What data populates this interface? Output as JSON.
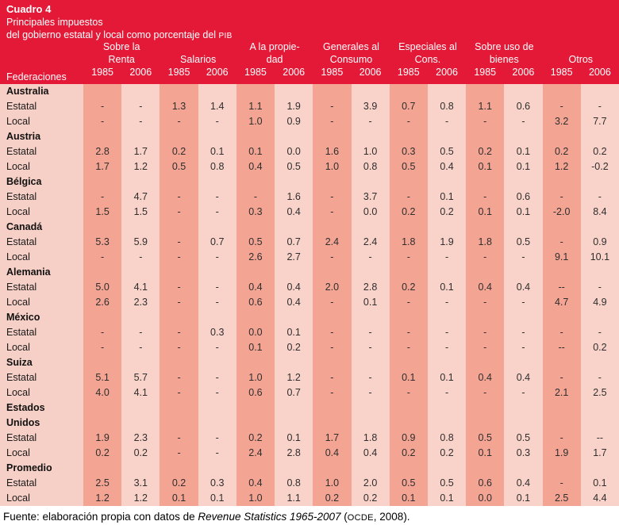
{
  "colors": {
    "header-red": "#E31937",
    "stripe-dark": "#F3A493",
    "stripe-light": "#F9D3C9",
    "label-col": "#F6CFC6",
    "ink": "#2E2E2E"
  },
  "header": {
    "title": "Cuadro 4",
    "subtitle_line1": "Principales impuestos",
    "subtitle_line2": "del gobierno estatal y local como porcentaje del ",
    "subtitle_line2_smallcaps": "PIB",
    "row_header_label": "Federaciones",
    "col_groups": [
      {
        "line1": "Sobre la",
        "line2": "Renta"
      },
      {
        "line1": "",
        "line2": "Salarios"
      },
      {
        "line1": "A la propie-",
        "line2": "dad"
      },
      {
        "line1": "Generales al",
        "line2": "Consumo"
      },
      {
        "line1": "Especiales al",
        "line2": "Cons."
      },
      {
        "line1": "Sobre uso de",
        "line2": "bienes"
      },
      {
        "line1": "",
        "line2": "Otros"
      }
    ],
    "years": [
      "1985",
      "2006"
    ]
  },
  "sections": [
    {
      "country_lines": [
        "Australia"
      ],
      "rows": [
        {
          "label": "Estatal",
          "values": [
            "-",
            "-",
            "1.3",
            "1.4",
            "1.1",
            "1.9",
            "-",
            "3.9",
            "0.7",
            "0.8",
            "1.1",
            "0.6",
            "-",
            "-"
          ]
        },
        {
          "label": "Local",
          "values": [
            "-",
            "-",
            "-",
            "-",
            "1.0",
            "0.9",
            "-",
            "-",
            "-",
            "-",
            "-",
            "-",
            "3.2",
            "7.7"
          ]
        }
      ]
    },
    {
      "country_lines": [
        "Austria"
      ],
      "rows": [
        {
          "label": "Estatal",
          "values": [
            "2.8",
            "1.7",
            "0.2",
            "0.1",
            "0.1",
            "0.0",
            "1.6",
            "1.0",
            "0.3",
            "0.5",
            "0.2",
            "0.1",
            "0.2",
            "0.2"
          ]
        },
        {
          "label": "Local",
          "values": [
            "1.7",
            "1.2",
            "0.5",
            "0.8",
            "0.4",
            "0.5",
            "1.0",
            "0.8",
            "0.5",
            "0.4",
            "0.1",
            "0.1",
            "1.2",
            "-0.2"
          ]
        }
      ]
    },
    {
      "country_lines": [
        "Bélgica"
      ],
      "rows": [
        {
          "label": "Estatal",
          "values": [
            "-",
            "4.7",
            "-",
            "-",
            "-",
            "1.6",
            "-",
            "3.7",
            "-",
            "0.1",
            "-",
            "0.6",
            "-",
            "-"
          ]
        },
        {
          "label": "Local",
          "values": [
            "1.5",
            "1.5",
            "-",
            "-",
            "0.3",
            "0.4",
            "-",
            "0.0",
            "0.2",
            "0.2",
            "0.1",
            "0.1",
            "-2.0",
            "8.4"
          ]
        }
      ]
    },
    {
      "country_lines": [
        "Canadá"
      ],
      "rows": [
        {
          "label": "Estatal",
          "values": [
            "5.3",
            "5.9",
            "-",
            "0.7",
            "0.5",
            "0.7",
            "2.4",
            "2.4",
            "1.8",
            "1.9",
            "1.8",
            "0.5",
            "-",
            "0.9"
          ]
        },
        {
          "label": "Local",
          "values": [
            "-",
            "-",
            "-",
            "-",
            "2.6",
            "2.7",
            "-",
            "-",
            "-",
            "-",
            "-",
            "-",
            "9.1",
            "10.1"
          ]
        }
      ]
    },
    {
      "country_lines": [
        "Alemania"
      ],
      "rows": [
        {
          "label": "Estatal",
          "values": [
            "5.0",
            "4.1",
            "-",
            "-",
            "0.4",
            "0.4",
            "2.0",
            "2.8",
            "0.2",
            "0.1",
            "0.4",
            "0.4",
            "--",
            "-"
          ]
        },
        {
          "label": "Local",
          "values": [
            "2.6",
            "2.3",
            "-",
            "-",
            "0.6",
            "0.4",
            "-",
            "0.1",
            "-",
            "-",
            "-",
            "-",
            "4.7",
            "4.9"
          ]
        }
      ]
    },
    {
      "country_lines": [
        "México"
      ],
      "rows": [
        {
          "label": "Estatal",
          "values": [
            "-",
            "-",
            "-",
            "0.3",
            "0.0",
            "0.1",
            "-",
            "-",
            "-",
            "-",
            "-",
            "-",
            "-",
            "-"
          ]
        },
        {
          "label": "Local",
          "values": [
            "-",
            "-",
            "-",
            "-",
            "0.1",
            "0.2",
            "-",
            "-",
            "-",
            "-",
            "-",
            "-",
            "--",
            "0.2"
          ]
        }
      ]
    },
    {
      "country_lines": [
        "Suiza"
      ],
      "rows": [
        {
          "label": "Estatal",
          "values": [
            "5.1",
            "5.7",
            "-",
            "-",
            "1.0",
            "1.2",
            "-",
            "-",
            "0.1",
            "0.1",
            "0.4",
            "0.4",
            "-",
            "-"
          ]
        },
        {
          "label": "Local",
          "values": [
            "4.0",
            "4.1",
            "-",
            "-",
            "0.6",
            "0.7",
            "-",
            "-",
            "-",
            "-",
            "-",
            "-",
            "2.1",
            "2.5"
          ]
        }
      ]
    },
    {
      "country_lines": [
        "Estados",
        "Unidos"
      ],
      "rows": [
        {
          "label": "Estatal",
          "values": [
            "1.9",
            "2.3",
            "-",
            "-",
            "0.2",
            "0.1",
            "1.7",
            "1.8",
            "0.9",
            "0.8",
            "0.5",
            "0.5",
            "-",
            "--"
          ]
        },
        {
          "label": "Local",
          "values": [
            "0.2",
            "0.2",
            "-",
            "-",
            "2.4",
            "2.8",
            "0.4",
            "0.4",
            "0.2",
            "0.2",
            "0.1",
            "0.3",
            "1.9",
            "1.7"
          ]
        }
      ]
    },
    {
      "country_lines": [
        "Promedio"
      ],
      "rows": [
        {
          "label": "Estatal",
          "values": [
            "2.5",
            "3.1",
            "0.2",
            "0.3",
            "0.4",
            "0.8",
            "1.0",
            "2.0",
            "0.5",
            "0.5",
            "0.6",
            "0.4",
            "-",
            "0.1"
          ]
        },
        {
          "label": "Local",
          "values": [
            "1.2",
            "1.2",
            "0.1",
            "0.1",
            "1.0",
            "1.1",
            "0.2",
            "0.2",
            "0.1",
            "0.1",
            "0.0",
            "0.1",
            "2.5",
            "4.4"
          ]
        }
      ]
    }
  ],
  "source": {
    "prefix": "Fuente: elaboración propia con datos de ",
    "italic": "Revenue Statistics 1965-2007",
    "mid": " (",
    "smallcaps": "OCDE",
    "suffix": ", 2008)."
  }
}
